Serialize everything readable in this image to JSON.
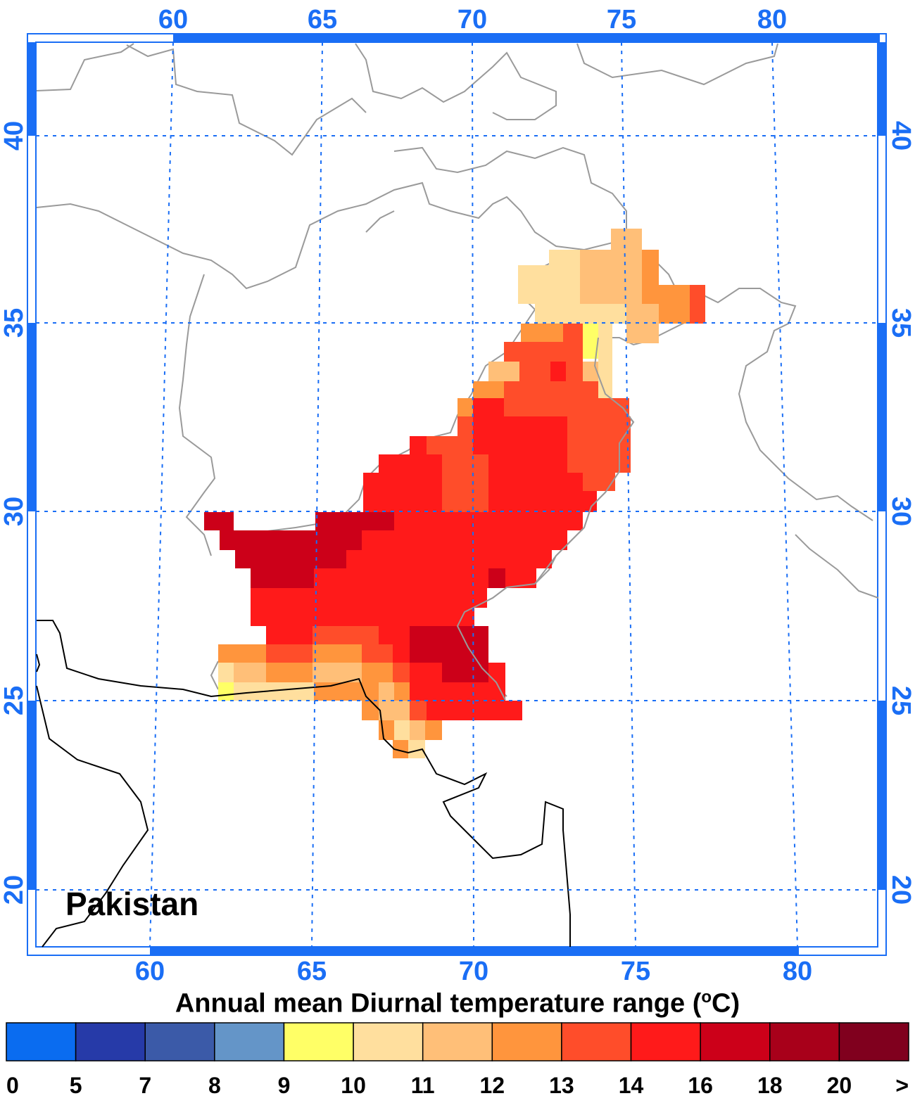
{
  "map": {
    "region_label": "Pakistan",
    "lon_ticks_top": [
      "60",
      "65",
      "70",
      "75",
      "80"
    ],
    "lon_ticks_bottom": [
      "60",
      "65",
      "70",
      "75",
      "80"
    ],
    "lat_ticks_left": [
      "40",
      "35",
      "30",
      "25",
      "20"
    ],
    "lat_ticks_right": [
      "40",
      "35",
      "30",
      "25",
      "20"
    ],
    "frame_color": "#1a6ef5",
    "grid_color": "#1a6ef5"
  },
  "colorbar": {
    "title_main": "Annual mean Diurnal temperature range (",
    "title_sup": "o",
    "title_end": "C)",
    "labels": [
      "0",
      "5",
      "7",
      "8",
      "9",
      "10",
      "11",
      "12",
      "13",
      "14",
      "16",
      "18",
      "20",
      ">"
    ],
    "colors": [
      "#0a6cf0",
      "#263aa8",
      "#3b5aa8",
      "#6495c8",
      "#ffff66",
      "#ffdf9e",
      "#ffbf78",
      "#ff953d",
      "#ff4d2a",
      "#ff1a1a",
      "#cc0019",
      "#a8001a",
      "#80001e"
    ]
  }
}
